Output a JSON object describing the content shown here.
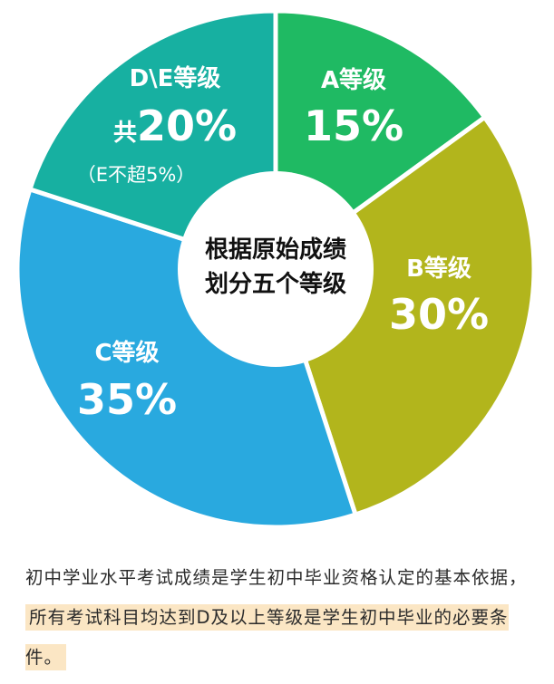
{
  "chart_data": {
    "type": "pie",
    "center_text": [
      "根据原始成绩",
      "划分五个等级"
    ],
    "slices": [
      {
        "label": "A等级",
        "value": 15,
        "value_text": "15%",
        "color": "#1fba63"
      },
      {
        "label": "B等级",
        "value": 30,
        "value_text": "30%",
        "color": "#b2b51c"
      },
      {
        "label": "C等级",
        "value": 35,
        "value_text": "35%",
        "color": "#29a9df"
      },
      {
        "label": "D\\E等级",
        "value": 20,
        "value_text": "20%",
        "prefix": "共",
        "note": "（E不超5%）",
        "color": "#17b0a1"
      }
    ]
  },
  "caption": {
    "text_before": "初中学业水平考试成绩是学生初中毕业资格认定的基本依据，",
    "highlight": "所有考试科目均达到D及以上等级是学生初中毕业的必要条件。",
    "highlight_color": "#fbe6c4"
  }
}
